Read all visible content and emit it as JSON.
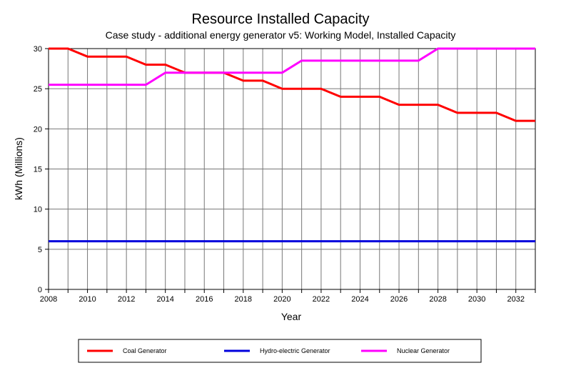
{
  "chart_data": {
    "type": "line",
    "title": "Resource Installed Capacity",
    "subtitle": "Case study - additional energy generator v5:  Working Model, Installed Capacity",
    "xlabel": "Year",
    "ylabel": "kWh  (Millions)",
    "xlim": [
      2008,
      2033
    ],
    "ylim": [
      0,
      30
    ],
    "x_ticks": [
      2008,
      2010,
      2012,
      2014,
      2016,
      2018,
      2020,
      2022,
      2024,
      2026,
      2028,
      2030,
      2032
    ],
    "y_ticks": [
      0,
      5,
      10,
      15,
      20,
      25,
      30
    ],
    "grid": true,
    "legend_position": "bottom",
    "series": [
      {
        "name": "Coal Generator",
        "color": "#ff0000",
        "x": [
          2008,
          2009,
          2010,
          2011,
          2012,
          2013,
          2014,
          2015,
          2016,
          2017,
          2018,
          2019,
          2020,
          2021,
          2022,
          2023,
          2024,
          2025,
          2026,
          2027,
          2028,
          2029,
          2030,
          2031,
          2032,
          2033
        ],
        "values": [
          30,
          30,
          29,
          29,
          29,
          28,
          28,
          27,
          27,
          27,
          26,
          26,
          25,
          25,
          25,
          24,
          24,
          24,
          23,
          23,
          23,
          22,
          22,
          22,
          21,
          21
        ]
      },
      {
        "name": "Hydro-electric Generator",
        "color": "#0000dd",
        "x": [
          2008,
          2033
        ],
        "values": [
          6,
          6
        ]
      },
      {
        "name": "Nuclear Generator",
        "color": "#ff00ff",
        "x": [
          2008,
          2009,
          2010,
          2011,
          2012,
          2013,
          2014,
          2015,
          2016,
          2017,
          2018,
          2019,
          2020,
          2021,
          2022,
          2023,
          2024,
          2025,
          2026,
          2027,
          2028,
          2029,
          2030,
          2031,
          2032,
          2033
        ],
        "values": [
          25.5,
          25.5,
          25.5,
          25.5,
          25.5,
          25.5,
          27,
          27,
          27,
          27,
          27,
          27,
          27,
          28.5,
          28.5,
          28.5,
          28.5,
          28.5,
          28.5,
          28.5,
          30,
          30,
          30,
          30,
          30,
          30
        ]
      }
    ]
  }
}
